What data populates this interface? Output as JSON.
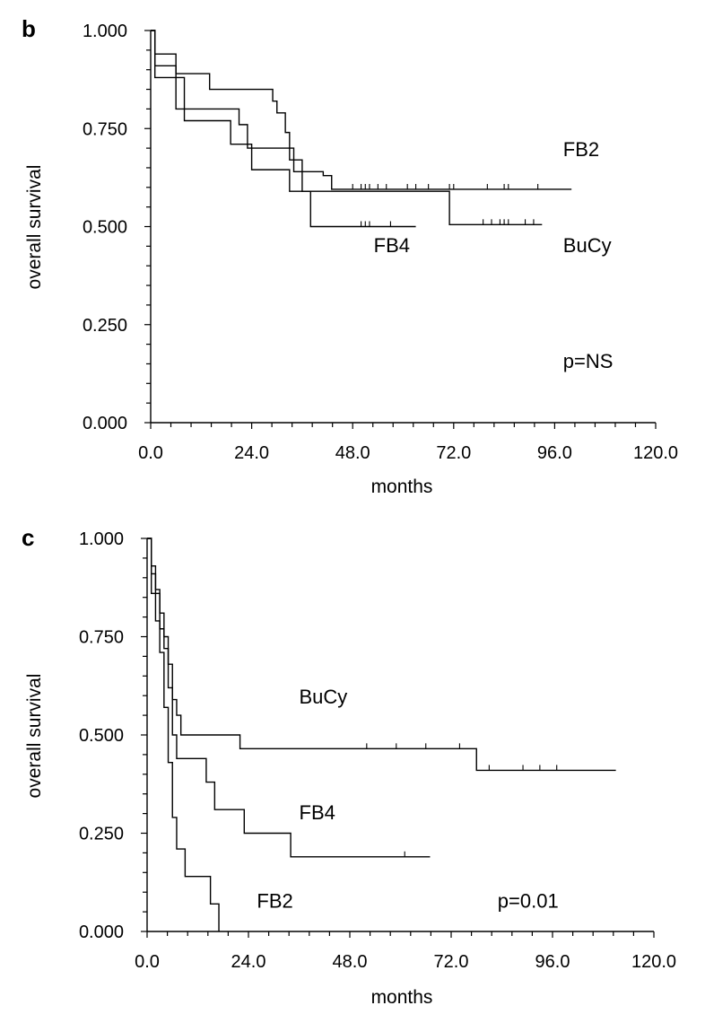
{
  "chart_data": [
    {
      "panel": "b",
      "type": "line",
      "xlabel": "months",
      "ylabel": "overall survival",
      "xlim": [
        0,
        120
      ],
      "ylim": [
        0,
        1
      ],
      "x_ticks": [
        "0.0",
        "24.0",
        "48.0",
        "72.0",
        "96.0",
        "120.0"
      ],
      "y_ticks": [
        "0.000",
        "0.250",
        "0.500",
        "0.750",
        "1.000"
      ],
      "annotations": [
        {
          "text": "FB2",
          "x": 98,
          "y": 0.68
        },
        {
          "text": "FB4",
          "x": 53,
          "y": 0.435
        },
        {
          "text": "BuCy",
          "x": 98,
          "y": 0.435
        },
        {
          "text": "p=NS",
          "x": 98,
          "y": 0.14
        }
      ],
      "series": [
        {
          "name": "FB2",
          "steps": [
            [
              0,
              1.0
            ],
            [
              1,
              0.94
            ],
            [
              6,
              0.89
            ],
            [
              14,
              0.85
            ],
            [
              29,
              0.82
            ],
            [
              30,
              0.79
            ],
            [
              32,
              0.74
            ],
            [
              33,
              0.7
            ],
            [
              34,
              0.64
            ],
            [
              41,
              0.63
            ],
            [
              43,
              0.595
            ],
            [
              100,
              0.595
            ]
          ],
          "censored": [
            48,
            50,
            51,
            52,
            54,
            56,
            61,
            63,
            66,
            71,
            72,
            80,
            84,
            85,
            92
          ]
        },
        {
          "name": "FB4",
          "steps": [
            [
              0,
              1.0
            ],
            [
              1,
              0.91
            ],
            [
              6,
              0.8
            ],
            [
              21,
              0.76
            ],
            [
              23,
              0.7
            ],
            [
              33,
              0.67
            ],
            [
              36,
              0.59
            ],
            [
              38,
              0.5
            ],
            [
              63,
              0.5
            ]
          ],
          "censored": [
            50,
            51,
            52,
            57
          ]
        },
        {
          "name": "BuCy",
          "steps": [
            [
              0,
              1.0
            ],
            [
              1,
              0.88
            ],
            [
              8,
              0.77
            ],
            [
              19,
              0.71
            ],
            [
              24,
              0.645
            ],
            [
              33,
              0.59
            ],
            [
              71,
              0.505
            ],
            [
              93,
              0.505
            ]
          ],
          "censored": [
            79,
            81,
            83,
            84,
            85,
            89,
            91
          ]
        }
      ]
    },
    {
      "panel": "c",
      "type": "line",
      "xlabel": "months",
      "ylabel": "overall survival",
      "xlim": [
        0,
        120
      ],
      "ylim": [
        0,
        1
      ],
      "x_ticks": [
        "0.0",
        "24.0",
        "48.0",
        "72.0",
        "96.0",
        "120.0"
      ],
      "y_ticks": [
        "0.000",
        "0.250",
        "0.500",
        "0.750",
        "1.000"
      ],
      "annotations": [
        {
          "text": "BuCy",
          "x": 36,
          "y": 0.58
        },
        {
          "text": "FB4",
          "x": 36,
          "y": 0.285
        },
        {
          "text": "FB2",
          "x": 26,
          "y": 0.06
        },
        {
          "text": "p=0.01",
          "x": 83,
          "y": 0.06
        }
      ],
      "series": [
        {
          "name": "BuCy",
          "steps": [
            [
              0,
              1.0
            ],
            [
              1,
              0.91
            ],
            [
              2,
              0.86
            ],
            [
              3,
              0.77
            ],
            [
              4,
              0.72
            ],
            [
              5,
              0.68
            ],
            [
              6,
              0.59
            ],
            [
              7,
              0.55
            ],
            [
              8,
              0.5
            ],
            [
              22,
              0.465
            ],
            [
              78,
              0.41
            ],
            [
              111,
              0.41
            ]
          ],
          "censored": [
            52,
            59,
            66,
            74,
            81,
            89,
            93,
            97
          ]
        },
        {
          "name": "FB4",
          "steps": [
            [
              0,
              1.0
            ],
            [
              1,
              0.93
            ],
            [
              2,
              0.87
            ],
            [
              3,
              0.81
            ],
            [
              4,
              0.75
            ],
            [
              5,
              0.62
            ],
            [
              6,
              0.5
            ],
            [
              7,
              0.44
            ],
            [
              14,
              0.38
            ],
            [
              16,
              0.31
            ],
            [
              23,
              0.25
            ],
            [
              34,
              0.19
            ],
            [
              67,
              0.19
            ]
          ],
          "censored": [
            61
          ]
        },
        {
          "name": "FB2",
          "steps": [
            [
              0,
              1.0
            ],
            [
              1,
              0.86
            ],
            [
              2,
              0.79
            ],
            [
              3,
              0.71
            ],
            [
              4,
              0.57
            ],
            [
              5,
              0.43
            ],
            [
              6,
              0.29
            ],
            [
              7,
              0.21
            ],
            [
              9,
              0.14
            ],
            [
              15,
              0.07
            ],
            [
              17,
              0.0
            ]
          ],
          "censored": []
        }
      ]
    }
  ]
}
